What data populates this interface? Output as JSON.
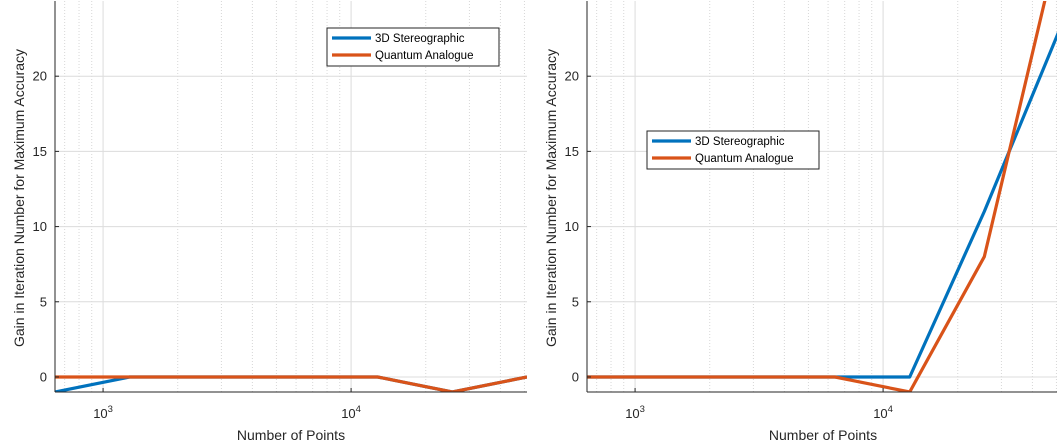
{
  "chart_data": [
    {
      "type": "line",
      "x_scale": "log",
      "xlabel": "Number of Points",
      "ylabel": "Gain in Iteration Number for Maximum Accuracy",
      "xlim": [
        640,
        51200
      ],
      "ylim": [
        -1,
        25
      ],
      "grid": true,
      "legend_position": "top-right",
      "x_ticks": [
        1000,
        10000
      ],
      "x_tick_labels": [
        {
          "base": "10",
          "exp": "3"
        },
        {
          "base": "10",
          "exp": "4"
        }
      ],
      "y_ticks": [
        0,
        5,
        10,
        15,
        20
      ],
      "x": [
        640,
        1280,
        2560,
        6400,
        12800,
        25600,
        51200
      ],
      "series": [
        {
          "name": "3D Stereographic",
          "color": "#0072bd",
          "values": [
            -1,
            0,
            0,
            0,
            0,
            -1,
            0
          ]
        },
        {
          "name": "Quantum Analogue",
          "color": "#d95319",
          "values": [
            0,
            0,
            0,
            0,
            0,
            -1,
            0
          ]
        }
      ]
    },
    {
      "type": "line",
      "x_scale": "log",
      "xlabel": "Number of Points",
      "ylabel": "Gain in Iteration Number for Maximum Accuracy",
      "xlim": [
        640,
        51200
      ],
      "ylim": [
        -1,
        25
      ],
      "grid": true,
      "legend_position": "left-middle",
      "x_ticks": [
        1000,
        10000
      ],
      "x_tick_labels": [
        {
          "base": "10",
          "exp": "3"
        },
        {
          "base": "10",
          "exp": "4"
        }
      ],
      "y_ticks": [
        0,
        5,
        10,
        15,
        20
      ],
      "x": [
        640,
        1280,
        2560,
        6400,
        12800,
        25600,
        51200
      ],
      "series": [
        {
          "name": "3D Stereographic",
          "color": "#0072bd",
          "values": [
            0,
            0,
            0,
            0,
            0,
            11,
            23
          ]
        },
        {
          "name": "Quantum Analogue",
          "color": "#d95319",
          "values": [
            0,
            0,
            0,
            0,
            -1,
            8,
            29
          ]
        }
      ]
    }
  ]
}
